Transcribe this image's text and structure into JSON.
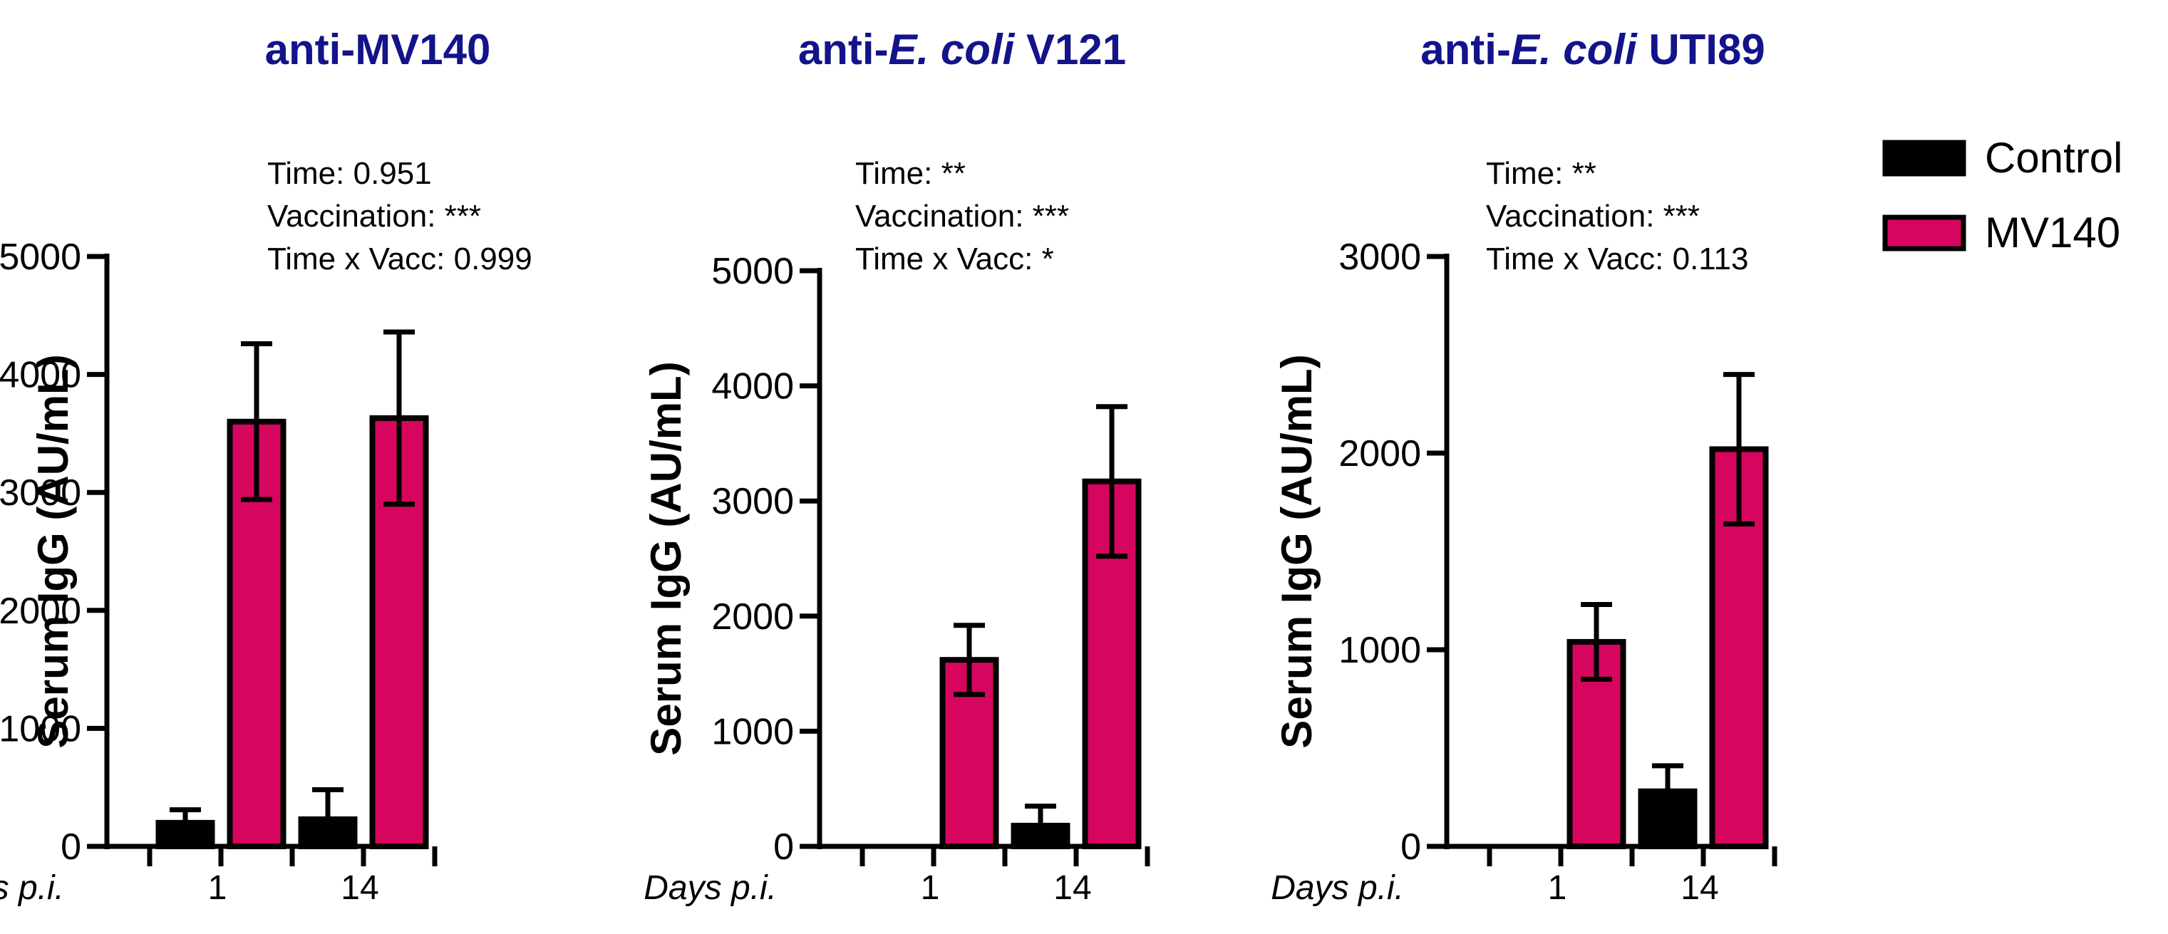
{
  "colors": {
    "control": "#000000",
    "mv140": "#d6065f",
    "title": "#13138a"
  },
  "legend": [
    {
      "name": "Control",
      "color": "#000000"
    },
    {
      "name": "MV140",
      "color": "#d6065f"
    }
  ],
  "chart_data": [
    {
      "type": "bar",
      "title_parts": [
        "anti-MV140"
      ],
      "ylabel": "Serum IgG (AU/mL)",
      "xlabel": "Days p.i.",
      "categories": [
        "1",
        "14"
      ],
      "ylim": [
        0,
        5000
      ],
      "yticks": [
        0,
        1000,
        2000,
        3000,
        4000,
        5000
      ],
      "stats": [
        "Time: 0.951",
        "Vaccination: ***",
        "Time x Vacc: 0.999"
      ],
      "series": [
        {
          "name": "Control",
          "values": [
            200,
            230
          ],
          "errors": [
            110,
            250
          ]
        },
        {
          "name": "MV140",
          "values": [
            3600,
            3630
          ],
          "errors": [
            660,
            730
          ]
        }
      ]
    },
    {
      "type": "bar",
      "title_parts": [
        "anti-",
        "E. coli",
        " V121"
      ],
      "ylabel": "Serum IgG (AU/mL)",
      "xlabel": "Days p.i.",
      "categories": [
        "1",
        "14"
      ],
      "ylim": [
        0,
        5000
      ],
      "yticks": [
        0,
        1000,
        2000,
        3000,
        4000,
        5000
      ],
      "stats": [
        "Time: **",
        "Vaccination: ***",
        "Time x Vacc: *"
      ],
      "series": [
        {
          "name": "Control",
          "values": [
            0,
            180
          ],
          "errors": [
            0,
            170
          ]
        },
        {
          "name": "MV140",
          "values": [
            1620,
            3170
          ],
          "errors": [
            300,
            650
          ]
        }
      ]
    },
    {
      "type": "bar",
      "title_parts": [
        "anti-",
        "E. coli",
        " UTI89"
      ],
      "ylabel": "Serum IgG (AU/mL)",
      "xlabel": "Days p.i.",
      "categories": [
        "1",
        "14"
      ],
      "ylim": [
        0,
        3000
      ],
      "yticks": [
        0,
        1000,
        2000,
        3000
      ],
      "stats": [
        "Time: **",
        "Vaccination: ***",
        "Time x Vacc: 0.113"
      ],
      "series": [
        {
          "name": "Control",
          "values": [
            0,
            280
          ],
          "errors": [
            0,
            130
          ]
        },
        {
          "name": "MV140",
          "values": [
            1040,
            2020
          ],
          "errors": [
            190,
            380
          ]
        }
      ]
    }
  ]
}
